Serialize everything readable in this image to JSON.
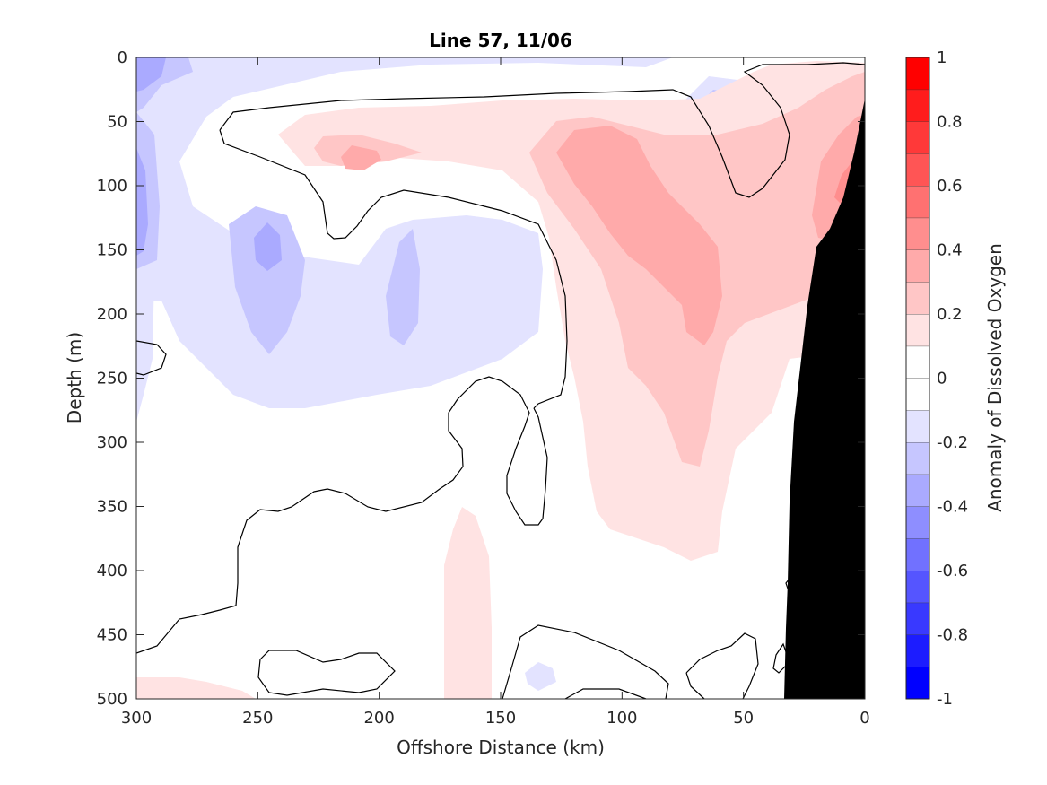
{
  "chart_data": {
    "type": "heatmap",
    "title": "Line 57, 11/06",
    "xlabel": "Offshore Distance (km)",
    "ylabel": "Depth (m)",
    "colorbar_label": "Anomaly of Dissolved Oxygen",
    "xlim": [
      300,
      0
    ],
    "ylim": [
      0,
      500
    ],
    "x_ticks": [
      "300",
      "250",
      "200",
      "150",
      "100",
      "50",
      "0"
    ],
    "y_ticks": [
      "0",
      "50",
      "100",
      "150",
      "200",
      "250",
      "300",
      "350",
      "400",
      "450",
      "500"
    ],
    "colorbar_ticks": [
      "1",
      "0.8",
      "0.6",
      "0.4",
      "0.2",
      "0",
      "-0.2",
      "-0.4",
      "-0.6",
      "-0.8",
      "-1"
    ],
    "colorbar_range": [
      -1,
      1
    ],
    "colorbar_levels": [
      {
        "from": -1.0,
        "to": -0.9,
        "color": "#0000ff"
      },
      {
        "from": -0.9,
        "to": -0.8,
        "color": "#1c1cff"
      },
      {
        "from": -0.8,
        "to": -0.7,
        "color": "#3939ff"
      },
      {
        "from": -0.7,
        "to": -0.6,
        "color": "#5555ff"
      },
      {
        "from": -0.6,
        "to": -0.5,
        "color": "#7171ff"
      },
      {
        "from": -0.5,
        "to": -0.4,
        "color": "#8e8eff"
      },
      {
        "from": -0.4,
        "to": -0.3,
        "color": "#aaaaff"
      },
      {
        "from": -0.3,
        "to": -0.2,
        "color": "#c6c6ff"
      },
      {
        "from": -0.2,
        "to": -0.1,
        "color": "#e3e3ff"
      },
      {
        "from": -0.1,
        "to": 0.0,
        "color": "#ffffff"
      },
      {
        "from": 0.0,
        "to": 0.1,
        "color": "#ffffff"
      },
      {
        "from": 0.1,
        "to": 0.2,
        "color": "#ffe3e3"
      },
      {
        "from": 0.2,
        "to": 0.3,
        "color": "#ffc6c6"
      },
      {
        "from": 0.3,
        "to": 0.4,
        "color": "#ffaaaa"
      },
      {
        "from": 0.4,
        "to": 0.5,
        "color": "#ff8e8e"
      },
      {
        "from": 0.5,
        "to": 0.6,
        "color": "#ff7171"
      },
      {
        "from": 0.6,
        "to": 0.7,
        "color": "#ff5555"
      },
      {
        "from": 0.7,
        "to": 0.8,
        "color": "#ff3939"
      },
      {
        "from": 0.8,
        "to": 0.9,
        "color": "#ff1c1c"
      },
      {
        "from": 0.9,
        "to": 1.0,
        "color": "#ff0000"
      }
    ],
    "bathymetry_color": "#000000",
    "contour_line_color": "#000000",
    "grid": false,
    "legend": "colorbar-right"
  }
}
